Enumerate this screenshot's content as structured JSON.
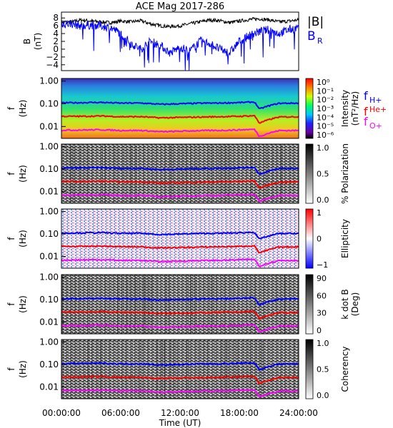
{
  "title": "ACE Mag 2017-286",
  "colors": {
    "h_plus": "#0000ff",
    "he_plus": "#ff0000",
    "o_plus": "#ff00ff",
    "b_total": "#000000",
    "b_r": "#0000ff"
  },
  "time_axis": {
    "label": "Time (UT)",
    "ticks": [
      "00:00:00",
      "06:00:00",
      "12:00:00",
      "18:00:00",
      "24:00:00"
    ],
    "range_hours": [
      0,
      24
    ]
  },
  "freq_axis": {
    "label": "f",
    "unit": "(Hz)",
    "ticks": [
      "1.00",
      "0.10",
      "0.01"
    ],
    "scale": "log",
    "range": [
      0.003,
      1.3
    ]
  },
  "legend": {
    "b_total": "|B|",
    "b_r": "B",
    "b_r_sub": "R",
    "h_plus": "f",
    "h_plus_sub": "H+",
    "he_plus": "f",
    "he_plus_sup": "He+",
    "o_plus": "f",
    "o_plus_sub": "O+"
  },
  "panels": [
    {
      "id": "intensity",
      "colorbar_label": "Intensity",
      "colorbar_unit": "(nT²/Hz)",
      "colorbar_ticks": [
        "10⁰",
        "10⁻¹",
        "10⁻²",
        "10⁻³",
        "10⁻⁴",
        "10⁻⁵",
        "10⁻⁶"
      ],
      "colorbar_scale": "log",
      "colorbar_range": [
        1e-06,
        1
      ]
    },
    {
      "id": "polarization",
      "colorbar_label": "% Polarization",
      "colorbar_ticks": [
        "1.0",
        "0.5",
        "0.0"
      ],
      "colorbar_range": [
        0,
        1
      ]
    },
    {
      "id": "ellipticity",
      "colorbar_label": "Ellipticity",
      "colorbar_ticks": [
        "1",
        "0",
        "−1"
      ],
      "colorbar_range": [
        -1,
        1
      ]
    },
    {
      "id": "kdotb",
      "colorbar_label": "k dot B",
      "colorbar_unit": "(Deg)",
      "colorbar_ticks": [
        "90",
        "60",
        "30",
        "0"
      ],
      "colorbar_range": [
        0,
        90
      ]
    },
    {
      "id": "coherency",
      "colorbar_label": "Coherency",
      "colorbar_ticks": [
        "1.0",
        "0.5",
        "0.0"
      ],
      "colorbar_range": [
        0,
        1
      ]
    }
  ],
  "chart_data": {
    "type": "line",
    "title": "ACE Mag 2017-286",
    "top_panel": {
      "ylabel": "B",
      "yunit": "(nT)",
      "yticks": [
        "8",
        "6",
        "4",
        "2",
        "0",
        "−2",
        "−4"
      ],
      "ylim": [
        -5.5,
        9.5
      ],
      "x_hours": [
        0,
        1,
        2,
        3,
        4,
        5,
        6,
        7,
        8,
        9,
        10,
        11,
        12,
        13,
        14,
        15,
        16,
        17,
        18,
        19,
        20,
        21,
        22,
        23,
        24
      ],
      "series": [
        {
          "name": "|B|",
          "values": [
            7.0,
            7.0,
            7.5,
            7.2,
            7.0,
            6.8,
            7.2,
            7.0,
            7.3,
            6.5,
            6.0,
            5.8,
            6.0,
            6.5,
            7.0,
            7.5,
            7.3,
            6.8,
            7.2,
            7.6,
            7.8,
            7.5,
            7.0,
            7.2,
            7.5
          ]
        },
        {
          "name": "BR",
          "values": [
            6.5,
            6.5,
            6.0,
            6.2,
            6.0,
            5.5,
            4.0,
            1.5,
            0.0,
            2.0,
            1.0,
            -1.0,
            0.5,
            -0.5,
            2.0,
            1.5,
            0.0,
            -1.0,
            2.0,
            3.5,
            4.5,
            5.0,
            4.0,
            5.0,
            5.5
          ]
        }
      ]
    },
    "gyrofrequency_lines": {
      "x_hours": [
        0,
        2,
        4,
        6,
        8,
        10,
        12,
        14,
        16,
        18,
        19.5,
        20,
        22,
        24
      ],
      "series": [
        {
          "name": "fH+",
          "values_hz": [
            0.11,
            0.112,
            0.115,
            0.107,
            0.108,
            0.095,
            0.1,
            0.106,
            0.108,
            0.113,
            0.12,
            0.058,
            0.105,
            0.107
          ]
        },
        {
          "name": "fHe+",
          "values_hz": [
            0.028,
            0.028,
            0.029,
            0.027,
            0.027,
            0.024,
            0.025,
            0.026,
            0.027,
            0.028,
            0.03,
            0.014,
            0.026,
            0.027
          ]
        },
        {
          "name": "fO+",
          "values_hz": [
            0.0069,
            0.007,
            0.0072,
            0.0067,
            0.0067,
            0.0059,
            0.0062,
            0.0066,
            0.0067,
            0.0071,
            0.0075,
            0.0036,
            0.0066,
            0.0067
          ]
        }
      ]
    }
  }
}
